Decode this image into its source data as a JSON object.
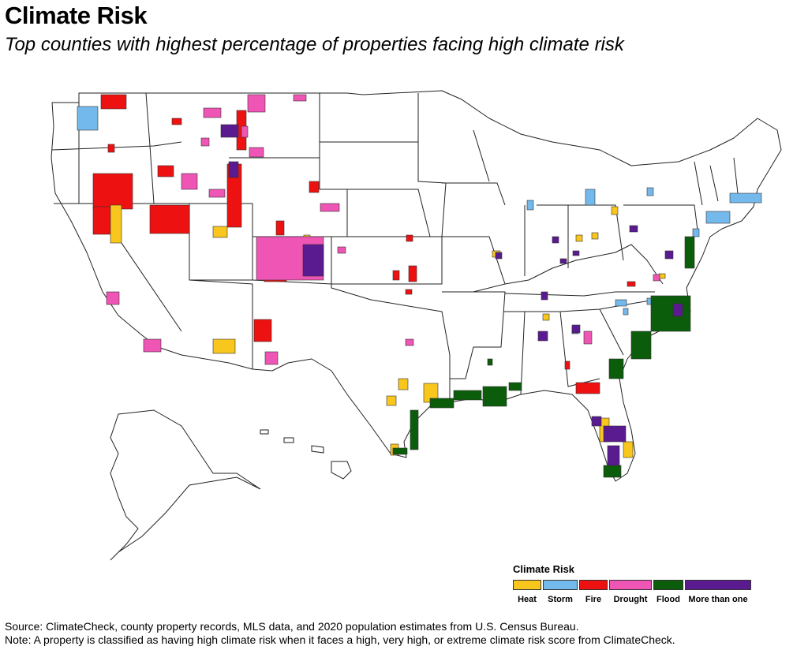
{
  "header": {
    "title": "Climate Risk",
    "subtitle": "Top counties with highest percentage of properties facing high climate risk"
  },
  "legend": {
    "title": "Climate Risk",
    "items": [
      {
        "label": "Heat",
        "color": "#f8c61c"
      },
      {
        "label": "Storm",
        "color": "#74b9ec"
      },
      {
        "label": "Fire",
        "color": "#ee1111"
      },
      {
        "label": "Drought",
        "color": "#ee55b4"
      },
      {
        "label": "Flood",
        "color": "#0b5c0b"
      },
      {
        "label": "More than one",
        "color": "#5a1a90"
      }
    ]
  },
  "footer": {
    "source": "Source: ClimateCheck, county property records, MLS data, and 2020 population estimates from U.S. Census Bureau.",
    "note": "Note: A property is classified as having high climate risk when it faces a high, very high, or extreme climate risk score from ClimateCheck."
  }
}
